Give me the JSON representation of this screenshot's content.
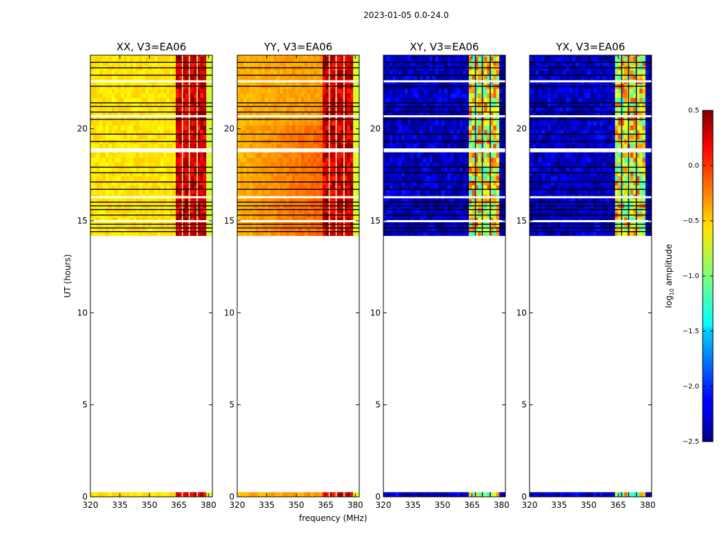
{
  "chart_data": {
    "type": "heatmap",
    "suptitle": "2023-01-05 0.0-24.0",
    "xlabel": "frequency (MHz)",
    "ylabel": "UT (hours)",
    "xlim": [
      320,
      382
    ],
    "ylim": [
      0,
      24
    ],
    "xticks": [
      320,
      335,
      350,
      365,
      380
    ],
    "yticks": [
      0,
      5,
      10,
      15,
      20
    ],
    "colorbar": {
      "label": "log10 amplitude",
      "label_main": "log",
      "label_sub": "10",
      "label_rest": " amplitude",
      "range": [
        -2.5,
        0.5
      ],
      "ticks": [
        0.5,
        0.0,
        -0.5,
        -1.0,
        -1.5,
        -2.0,
        -2.5
      ],
      "tick_labels": [
        "0.5",
        "0.0",
        "−0.5",
        "−1.0",
        "−1.5",
        "−2.0",
        "−2.5"
      ],
      "colormap": "jet"
    },
    "data_coverage_hours": [
      [
        0.0,
        0.25
      ],
      [
        14.2,
        24.0
      ]
    ],
    "gap_hours": [
      [
        0.25,
        14.2
      ]
    ],
    "rfi_band_mhz": [
      363,
      378
    ],
    "panels": [
      {
        "title": "XX, V3=EA06",
        "polarization": "XX",
        "mean_log10_amplitude": -0.55,
        "rfi_log10_amplitude": 0.25
      },
      {
        "title": "YY, V3=EA06",
        "polarization": "YY",
        "mean_log10_amplitude": -0.4,
        "rfi_log10_amplitude": 0.25
      },
      {
        "title": "XY, V3=EA06",
        "polarization": "XY",
        "mean_log10_amplitude": -2.3,
        "rfi_log10_amplitude": -0.9
      },
      {
        "title": "YX, V3=EA06",
        "polarization": "YX",
        "mean_log10_amplitude": -2.3,
        "rfi_log10_amplitude": -0.9
      }
    ],
    "flagged_rows_hours": [
      23.6,
      23.3,
      22.9,
      22.6,
      22.3,
      21.4,
      21.2,
      20.9,
      20.7,
      20.5,
      19.7,
      19.3,
      18.9,
      18.8,
      17.9,
      17.6,
      17.1,
      16.7,
      16.3,
      16.0,
      15.8,
      15.6,
      15.3,
      15.0,
      14.8,
      14.6,
      14.4
    ]
  }
}
